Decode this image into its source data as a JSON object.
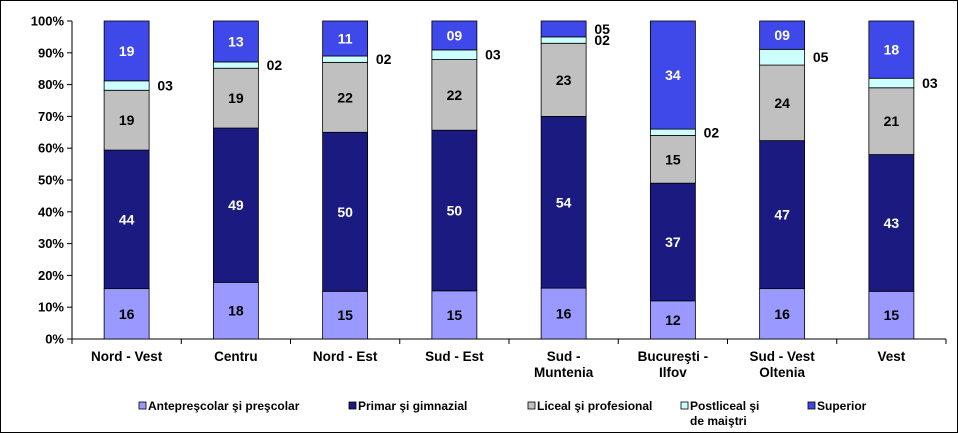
{
  "chart_data": {
    "type": "bar",
    "stacked": true,
    "categories": [
      [
        "Nord - Vest"
      ],
      [
        "Centru"
      ],
      [
        "Nord - Est"
      ],
      [
        "Sud - Est"
      ],
      [
        "Sud -",
        "Muntenia"
      ],
      [
        "Bucureşti -",
        "Ilfov"
      ],
      [
        "Sud - Vest",
        "Oltenia"
      ],
      [
        "Vest"
      ]
    ],
    "series": [
      {
        "name": "Antepreşcolar şi preşcolar",
        "color": "#9999ff",
        "values": [
          16,
          18,
          15,
          15,
          16,
          12,
          16,
          15
        ],
        "labels": [
          "16",
          "18",
          "15",
          "15",
          "16",
          "12",
          "16",
          "15"
        ]
      },
      {
        "name": "Primar şi gimnazial",
        "color": "#1a1a80",
        "values": [
          44,
          49,
          50,
          50,
          54,
          37,
          47,
          43
        ],
        "labels": [
          "44",
          "49",
          "50",
          "50",
          "54",
          "37",
          "47",
          "43"
        ]
      },
      {
        "name": "Liceal şi profesional",
        "color": "#c0c0c0",
        "values": [
          19,
          19,
          22,
          22,
          23,
          15,
          24,
          21
        ],
        "labels": [
          "19",
          "19",
          "22",
          "22",
          "23",
          "15",
          "24",
          "21"
        ]
      },
      {
        "name": "Postliceal şi de maiştri",
        "color": "#ccffff",
        "values": [
          3,
          2,
          2,
          3,
          2,
          2,
          5,
          3
        ],
        "labels": [
          "03",
          "02",
          "02",
          "03",
          "02",
          "02",
          "05",
          "03"
        ]
      },
      {
        "name": "Superior",
        "color": "#3f48e8",
        "values": [
          19,
          13,
          11,
          9,
          5,
          34,
          9,
          18
        ],
        "labels": [
          "19",
          "13",
          "11",
          "09",
          "05",
          "34",
          "09",
          "18"
        ]
      }
    ],
    "y_ticks": [
      "0%",
      "10%",
      "20%",
      "30%",
      "40%",
      "50%",
      "60%",
      "70%",
      "80%",
      "90%",
      "100%"
    ],
    "ylim": [
      0,
      100
    ],
    "y_unit": "%",
    "grid": false,
    "legend_position": "bottom",
    "legend_labels": [
      [
        "Antepreşcolar şi preşcolar"
      ],
      [
        "Primar şi gimnazial"
      ],
      [
        "Liceal şi profesional"
      ],
      [
        "Postliceal şi",
        "de maiştri"
      ],
      [
        "Superior"
      ]
    ]
  }
}
